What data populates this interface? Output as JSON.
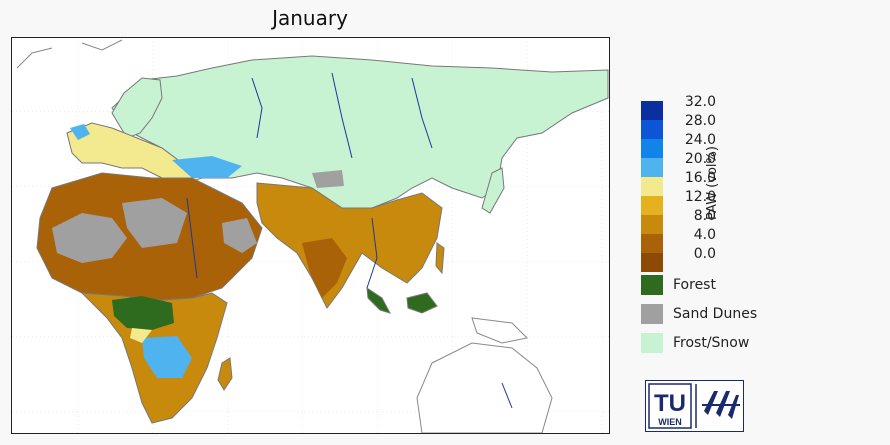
{
  "title": "January",
  "colorbar": {
    "unit_label": "PAW (vol%)",
    "ticks": [
      "32.0",
      "28.0",
      "24.0",
      "20.0",
      "16.0",
      "12.0",
      "8.0",
      "4.0",
      "0.0"
    ],
    "colors": [
      "#0a2f9e",
      "#0b55d6",
      "#1283e8",
      "#4fb3f0",
      "#f3e98e",
      "#e3b21e",
      "#c88a0d",
      "#a96208",
      "#8c4a06"
    ]
  },
  "categories": [
    {
      "label": "Forest",
      "color": "#2e6b1e"
    },
    {
      "label": "Sand Dunes",
      "color": "#a0a0a0"
    },
    {
      "label": "Frost/Snow",
      "color": "#c8f3d2"
    }
  ],
  "logo": {
    "left_text": "TU",
    "sub_text": "WIEN",
    "right_text": "IPF"
  }
}
